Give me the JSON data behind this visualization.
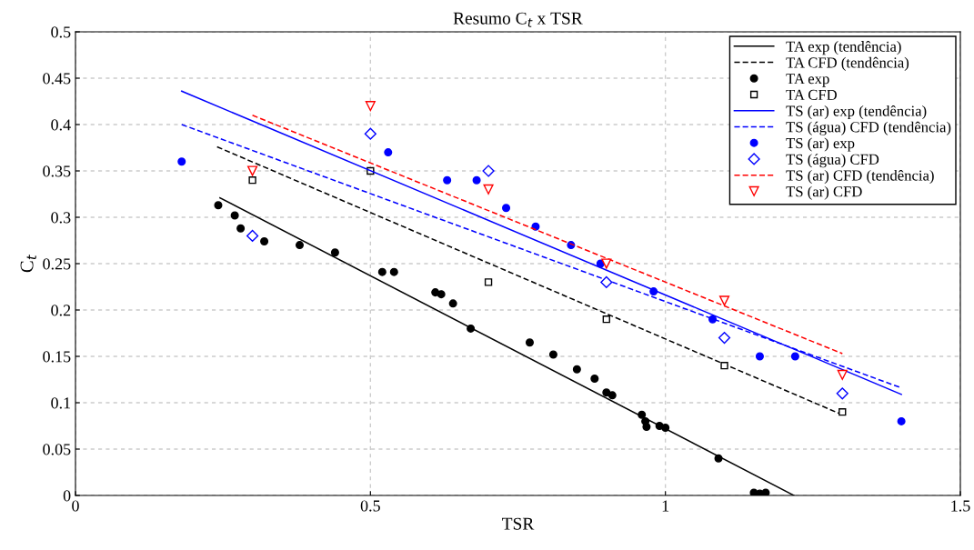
{
  "chart_data": {
    "type": "scatter",
    "title": "Resumo C$_{t}$ x TSR",
    "xlabel": "TSR",
    "ylabel": "C$_{t}$",
    "xlim": [
      0,
      1.5
    ],
    "ylim": [
      0,
      0.5
    ],
    "xticks": [
      0,
      0.5,
      1,
      1.5
    ],
    "yticks": [
      0,
      0.05,
      0.1,
      0.15,
      0.2,
      0.25,
      0.3,
      0.35,
      0.4,
      0.45,
      0.5
    ],
    "grid": true,
    "legend": "top right",
    "series": [
      {
        "name": "TA exp (tendência)",
        "type": "line",
        "color": "#000000",
        "line_style": "solid",
        "marker": "none",
        "x": [
          0.245,
          1.218
        ],
        "values": [
          0.321,
          0
        ]
      },
      {
        "name": "TA CFD (tendência)",
        "type": "line",
        "color": "#000000",
        "line_style": "dashed",
        "marker": "none",
        "x": [
          0.24,
          1.3
        ],
        "values": [
          0.376,
          0.087
        ]
      },
      {
        "name": "TA exp",
        "color": "#000000",
        "marker": "circle",
        "x": [
          0.242,
          0.27,
          0.28,
          0.32,
          0.38,
          0.44,
          0.52,
          0.54,
          0.61,
          0.62,
          0.64,
          0.67,
          0.77,
          0.81,
          0.85,
          0.88,
          0.9,
          0.91,
          0.96,
          0.966,
          0.968,
          0.99,
          1.0,
          1.09,
          1.15,
          1.16,
          1.17
        ],
        "values": [
          0.313,
          0.302,
          0.288,
          0.274,
          0.27,
          0.262,
          0.241,
          0.241,
          0.219,
          0.217,
          0.207,
          0.18,
          0.165,
          0.152,
          0.136,
          0.126,
          0.111,
          0.108,
          0.087,
          0.08,
          0.074,
          0.075,
          0.073,
          0.04,
          0.003,
          0.002,
          0.003
        ]
      },
      {
        "name": "TA CFD",
        "color": "#000000",
        "marker": "square",
        "x": [
          0.3,
          0.5,
          0.7,
          0.9,
          1.1,
          1.3
        ],
        "values": [
          0.34,
          0.35,
          0.23,
          0.19,
          0.14,
          0.09
        ]
      },
      {
        "name": "TS (ar) exp (tendência)",
        "type": "line",
        "color": "#0000ff",
        "line_style": "solid",
        "marker": "none",
        "x": [
          0.18,
          1.4
        ],
        "values": [
          0.436,
          0.109
        ]
      },
      {
        "name": "TS (água) CFD (tendência)",
        "type": "line",
        "color": "#0000ff",
        "line_style": "dashed",
        "marker": "none",
        "x": [
          0.18,
          1.4
        ],
        "values": [
          0.4,
          0.116
        ]
      },
      {
        "name": "TS (ar) exp",
        "color": "#0000ff",
        "marker": "circle",
        "x": [
          0.18,
          0.53,
          0.63,
          0.68,
          0.73,
          0.78,
          0.84,
          0.89,
          0.98,
          1.08,
          1.16,
          1.22,
          1.4
        ],
        "values": [
          0.36,
          0.37,
          0.34,
          0.34,
          0.31,
          0.29,
          0.27,
          0.25,
          0.22,
          0.19,
          0.15,
          0.15,
          0.08
        ]
      },
      {
        "name": "TS (água) CFD",
        "color": "#0000ff",
        "marker": "diamond",
        "x": [
          0.3,
          0.5,
          0.7,
          0.9,
          1.1,
          1.3
        ],
        "values": [
          0.28,
          0.39,
          0.35,
          0.23,
          0.17,
          0.11
        ]
      },
      {
        "name": "TS (ar) CFD (tendência)",
        "type": "line",
        "color": "#ff0000",
        "line_style": "dashed",
        "marker": "none",
        "x": [
          0.3,
          1.3
        ],
        "values": [
          0.41,
          0.153
        ]
      },
      {
        "name": "TS (ar) CFD",
        "color": "#ff0000",
        "marker": "triangle",
        "x": [
          0.3,
          0.5,
          0.7,
          0.9,
          1.1,
          1.3
        ],
        "values": [
          0.35,
          0.42,
          0.33,
          0.25,
          0.21,
          0.13
        ]
      }
    ]
  }
}
